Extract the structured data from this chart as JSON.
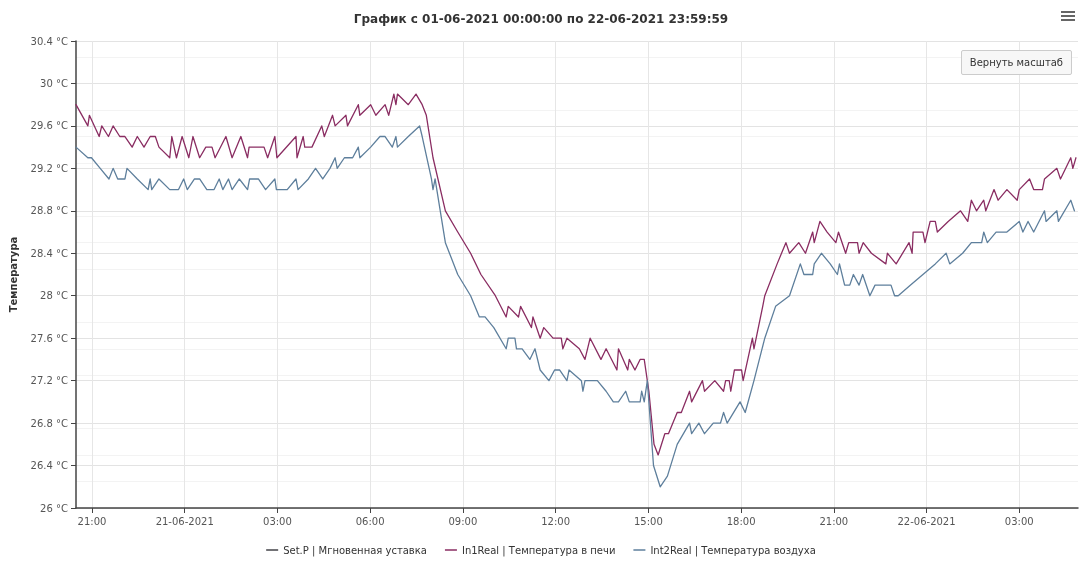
{
  "chart_data": {
    "type": "line",
    "title": "График с 01-06-2021 00:00:00 по 22-06-2021 23:59:59",
    "ylabel": "Температура",
    "annotations": [
      "Вернуть масштаб"
    ],
    "xlim": [
      "2021-06-20T20:29",
      "2021-06-22T04:54"
    ],
    "xticks": [
      {
        "value": "2021-06-20T21:00",
        "label": "21:00"
      },
      {
        "value": "2021-06-21T00:00",
        "label": "21-06-2021"
      },
      {
        "value": "2021-06-21T03:00",
        "label": "03:00"
      },
      {
        "value": "2021-06-21T06:00",
        "label": "06:00"
      },
      {
        "value": "2021-06-21T09:00",
        "label": "09:00"
      },
      {
        "value": "2021-06-21T12:00",
        "label": "12:00"
      },
      {
        "value": "2021-06-21T15:00",
        "label": "15:00"
      },
      {
        "value": "2021-06-21T18:00",
        "label": "18:00"
      },
      {
        "value": "2021-06-21T21:00",
        "label": "21:00"
      },
      {
        "value": "2021-06-22T00:00",
        "label": "22-06-2021"
      },
      {
        "value": "2021-06-22T03:00",
        "label": "03:00"
      }
    ],
    "ylim": [
      26,
      30.4
    ],
    "yticks": [
      {
        "value": 26,
        "label": "26 °C"
      },
      {
        "value": 26.4,
        "label": "26.4 °C"
      },
      {
        "value": 26.8,
        "label": "26.8 °C"
      },
      {
        "value": 27.2,
        "label": "27.2 °C"
      },
      {
        "value": 27.6,
        "label": "27.6 °C"
      },
      {
        "value": 28,
        "label": "28 °C"
      },
      {
        "value": 28.4,
        "label": "28.4 °C"
      },
      {
        "value": 28.8,
        "label": "28.8 °C"
      },
      {
        "value": 29.2,
        "label": "29.2 °C"
      },
      {
        "value": 29.6,
        "label": "29.6 °C"
      },
      {
        "value": 30,
        "label": "30 °C"
      },
      {
        "value": 30.4,
        "label": "30.4 °C"
      }
    ],
    "grid": true,
    "legend": "bottom",
    "marker": "none",
    "line_style": "solid",
    "series": [
      {
        "name": "Set.P | Мгновенная уставка",
        "color": "#434348"
      },
      {
        "name": "In1Real | Температура в печи",
        "color": "#8a2d62",
        "x": [
          "2021-06-20T20:29",
          "2021-06-20T20:52",
          "2021-06-20T20:55",
          "2021-06-20T21:14",
          "2021-06-20T21:19",
          "2021-06-20T21:32",
          "2021-06-20T21:41",
          "2021-06-20T21:54",
          "2021-06-20T22:04",
          "2021-06-20T22:18",
          "2021-06-20T22:28",
          "2021-06-20T22:41",
          "2021-06-20T22:53",
          "2021-06-20T23:03",
          "2021-06-20T23:10",
          "2021-06-20T23:31",
          "2021-06-20T23:35",
          "2021-06-20T23:44",
          "2021-06-20T23:55",
          "2021-06-21T00:08",
          "2021-06-21T00:16",
          "2021-06-21T00:29",
          "2021-06-21T00:41",
          "2021-06-21T00:53",
          "2021-06-21T00:59",
          "2021-06-21T01:20",
          "2021-06-21T01:32",
          "2021-06-21T01:49",
          "2021-06-21T02:02",
          "2021-06-21T02:05",
          "2021-06-21T02:34",
          "2021-06-21T02:41",
          "2021-06-21T02:55",
          "2021-06-21T02:59",
          "2021-06-21T03:36",
          "2021-06-21T03:38",
          "2021-06-21T03:50",
          "2021-06-21T03:53",
          "2021-06-21T04:07",
          "2021-06-21T04:26",
          "2021-06-21T04:31",
          "2021-06-21T04:47",
          "2021-06-21T04:52",
          "2021-06-21T05:13",
          "2021-06-21T05:16",
          "2021-06-21T05:37",
          "2021-06-21T05:40",
          "2021-06-21T06:01",
          "2021-06-21T06:11",
          "2021-06-21T06:29",
          "2021-06-21T06:36",
          "2021-06-21T06:46",
          "2021-06-21T06:50",
          "2021-06-21T06:53",
          "2021-06-21T07:14",
          "2021-06-21T07:29",
          "2021-06-21T07:41",
          "2021-06-21T07:49",
          "2021-06-21T08:02",
          "2021-06-21T08:26",
          "2021-06-21T08:50",
          "2021-06-21T09:15",
          "2021-06-21T09:35",
          "2021-06-21T10:03",
          "2021-06-21T10:24",
          "2021-06-21T10:28",
          "2021-06-21T10:48",
          "2021-06-21T10:52",
          "2021-06-21T11:13",
          "2021-06-21T11:16",
          "2021-06-21T11:30",
          "2021-06-21T11:37",
          "2021-06-21T11:55",
          "2021-06-21T12:11",
          "2021-06-21T12:14",
          "2021-06-21T12:22",
          "2021-06-21T12:46",
          "2021-06-21T12:57",
          "2021-06-21T13:07",
          "2021-06-21T13:28",
          "2021-06-21T13:38",
          "2021-06-21T13:59",
          "2021-06-21T14:02",
          "2021-06-21T14:20",
          "2021-06-21T14:23",
          "2021-06-21T14:34",
          "2021-06-21T14:44",
          "2021-06-21T14:52",
          "2021-06-21T15:01",
          "2021-06-21T15:11",
          "2021-06-21T15:19",
          "2021-06-21T15:32",
          "2021-06-21T15:39",
          "2021-06-21T15:56",
          "2021-06-21T16:04",
          "2021-06-21T16:20",
          "2021-06-21T16:24",
          "2021-06-21T16:45",
          "2021-06-21T16:49",
          "2021-06-21T17:09",
          "2021-06-21T17:26",
          "2021-06-21T17:30",
          "2021-06-21T17:37",
          "2021-06-21T17:40",
          "2021-06-21T17:47",
          "2021-06-21T18:01",
          "2021-06-21T18:04",
          "2021-06-21T18:22",
          "2021-06-21T18:25",
          "2021-06-21T18:42",
          "2021-06-21T18:46",
          "2021-06-21T19:10",
          "2021-06-21T19:27",
          "2021-06-21T19:34",
          "2021-06-21T19:52",
          "2021-06-21T20:05",
          "2021-06-21T20:19",
          "2021-06-21T20:22",
          "2021-06-21T20:33",
          "2021-06-21T20:47",
          "2021-06-21T21:04",
          "2021-06-21T21:09",
          "2021-06-21T21:23",
          "2021-06-21T21:29",
          "2021-06-21T21:46",
          "2021-06-21T21:49",
          "2021-06-21T21:57",
          "2021-06-21T22:13",
          "2021-06-21T22:41",
          "2021-06-21T22:44",
          "2021-06-21T23:01",
          "2021-06-21T23:26",
          "2021-06-21T23:32",
          "2021-06-21T23:34",
          "2021-06-21T23:53",
          "2021-06-21T23:57",
          "2021-06-22T00:07",
          "2021-06-22T00:17",
          "2021-06-22T00:21",
          "2021-06-22T00:42",
          "2021-06-22T01:06",
          "2021-06-22T01:20",
          "2021-06-22T01:27",
          "2021-06-22T01:37",
          "2021-06-22T01:51",
          "2021-06-22T01:55",
          "2021-06-22T02:11",
          "2021-06-22T02:19",
          "2021-06-22T02:36",
          "2021-06-22T02:56",
          "2021-06-22T03:00",
          "2021-06-22T03:20",
          "2021-06-22T03:28",
          "2021-06-22T03:45",
          "2021-06-22T03:49",
          "2021-06-22T04:13",
          "2021-06-22T04:20",
          "2021-06-22T04:40",
          "2021-06-22T04:44",
          "2021-06-22T04:50"
        ],
        "values": [
          29.8,
          29.6,
          29.7,
          29.5,
          29.6,
          29.5,
          29.6,
          29.5,
          29.5,
          29.4,
          29.5,
          29.4,
          29.5,
          29.5,
          29.4,
          29.3,
          29.5,
          29.3,
          29.5,
          29.3,
          29.5,
          29.3,
          29.4,
          29.4,
          29.3,
          29.5,
          29.3,
          29.5,
          29.3,
          29.4,
          29.4,
          29.3,
          29.5,
          29.3,
          29.5,
          29.3,
          29.5,
          29.4,
          29.4,
          29.6,
          29.5,
          29.7,
          29.6,
          29.7,
          29.6,
          29.8,
          29.7,
          29.8,
          29.7,
          29.8,
          29.7,
          29.9,
          29.8,
          29.9,
          29.8,
          29.9,
          29.8,
          29.7,
          29.3,
          28.8,
          28.6,
          28.4,
          28.2,
          28.0,
          27.8,
          27.9,
          27.8,
          27.9,
          27.7,
          27.8,
          27.6,
          27.7,
          27.6,
          27.6,
          27.5,
          27.6,
          27.5,
          27.4,
          27.6,
          27.4,
          27.5,
          27.3,
          27.5,
          27.3,
          27.4,
          27.3,
          27.4,
          27.4,
          27.1,
          26.6,
          26.5,
          26.7,
          26.7,
          26.9,
          26.9,
          27.1,
          27.0,
          27.2,
          27.1,
          27.2,
          27.1,
          27.2,
          27.2,
          27.1,
          27.3,
          27.3,
          27.2,
          27.6,
          27.5,
          27.9,
          28.0,
          28.3,
          28.5,
          28.4,
          28.5,
          28.4,
          28.6,
          28.5,
          28.7,
          28.6,
          28.5,
          28.6,
          28.4,
          28.5,
          28.5,
          28.4,
          28.5,
          28.4,
          28.3,
          28.4,
          28.3,
          28.5,
          28.4,
          28.6,
          28.6,
          28.5,
          28.7,
          28.7,
          28.6,
          28.7,
          28.8,
          28.7,
          28.9,
          28.8,
          28.9,
          28.8,
          29.0,
          28.9,
          29.0,
          28.9,
          29.0,
          29.1,
          29.0,
          29.0,
          29.1,
          29.2,
          29.1,
          29.3,
          29.2,
          29.3
        ]
      },
      {
        "name": "Int2Real | Температура воздуха",
        "color": "#5e7f9c",
        "x": [
          "2021-06-20T20:29",
          "2021-06-20T20:52",
          "2021-06-20T20:59",
          "2021-06-20T21:16",
          "2021-06-20T21:33",
          "2021-06-20T21:41",
          "2021-06-20T21:50",
          "2021-06-20T22:04",
          "2021-06-20T22:08",
          "2021-06-20T22:28",
          "2021-06-20T22:49",
          "2021-06-20T22:53",
          "2021-06-20T22:56",
          "2021-06-20T23:10",
          "2021-06-20T23:31",
          "2021-06-20T23:48",
          "2021-06-20T23:58",
          "2021-06-21T00:05",
          "2021-06-21T00:19",
          "2021-06-21T00:29",
          "2021-06-21T00:43",
          "2021-06-21T00:57",
          "2021-06-21T01:07",
          "2021-06-21T01:14",
          "2021-06-21T01:25",
          "2021-06-21T01:32",
          "2021-06-21T01:46",
          "2021-06-21T02:02",
          "2021-06-21T02:06",
          "2021-06-21T02:23",
          "2021-06-21T02:37",
          "2021-06-21T02:55",
          "2021-06-21T02:58",
          "2021-06-21T03:19",
          "2021-06-21T03:36",
          "2021-06-21T03:40",
          "2021-06-21T04:00",
          "2021-06-21T04:14",
          "2021-06-21T04:28",
          "2021-06-21T04:42",
          "2021-06-21T04:52",
          "2021-06-21T04:56",
          "2021-06-21T05:10",
          "2021-06-21T05:26",
          "2021-06-21T05:37",
          "2021-06-21T05:40",
          "2021-06-21T06:01",
          "2021-06-21T06:19",
          "2021-06-21T06:29",
          "2021-06-21T06:43",
          "2021-06-21T06:50",
          "2021-06-21T06:53",
          "2021-06-21T07:14",
          "2021-06-21T07:36",
          "2021-06-21T07:41",
          "2021-06-21T07:59",
          "2021-06-21T08:02",
          "2021-06-21T08:06",
          "2021-06-21T08:26",
          "2021-06-21T08:50",
          "2021-06-21T09:15",
          "2021-06-21T09:32",
          "2021-06-21T09:43",
          "2021-06-21T10:00",
          "2021-06-21T10:24",
          "2021-06-21T10:28",
          "2021-06-21T10:41",
          "2021-06-21T10:44",
          "2021-06-21T10:55",
          "2021-06-21T11:10",
          "2021-06-21T11:20",
          "2021-06-21T11:30",
          "2021-06-21T11:47",
          "2021-06-21T11:58",
          "2021-06-21T12:08",
          "2021-06-21T12:22",
          "2021-06-21T12:26",
          "2021-06-21T12:50",
          "2021-06-21T12:53",
          "2021-06-21T12:57",
          "2021-06-21T13:21",
          "2021-06-21T13:38",
          "2021-06-21T13:52",
          "2021-06-21T14:02",
          "2021-06-21T14:16",
          "2021-06-21T14:23",
          "2021-06-21T14:44",
          "2021-06-21T14:47",
          "2021-06-21T14:52",
          "2021-06-21T14:58",
          "2021-06-21T15:10",
          "2021-06-21T15:23",
          "2021-06-21T15:37",
          "2021-06-21T15:56",
          "2021-06-21T16:20",
          "2021-06-21T16:24",
          "2021-06-21T16:38",
          "2021-06-21T16:49",
          "2021-06-21T17:06",
          "2021-06-21T17:20",
          "2021-06-21T17:26",
          "2021-06-21T17:33",
          "2021-06-21T17:58",
          "2021-06-21T18:08",
          "2021-06-21T18:25",
          "2021-06-21T18:46",
          "2021-06-21T19:07",
          "2021-06-21T19:34",
          "2021-06-21T19:55",
          "2021-06-21T20:02",
          "2021-06-21T20:19",
          "2021-06-21T20:22",
          "2021-06-21T20:36",
          "2021-06-21T20:53",
          "2021-06-21T21:07",
          "2021-06-21T21:11",
          "2021-06-21T21:21",
          "2021-06-21T21:31",
          "2021-06-21T21:38",
          "2021-06-21T21:49",
          "2021-06-21T21:56",
          "2021-06-21T22:10",
          "2021-06-21T22:20",
          "2021-06-21T22:51",
          "2021-06-21T22:58",
          "2021-06-21T23:05",
          "2021-06-21T23:29",
          "2021-06-21T23:53",
          "2021-06-22T00:17",
          "2021-06-22T00:38",
          "2021-06-22T00:45",
          "2021-06-22T01:10",
          "2021-06-22T01:27",
          "2021-06-22T01:47",
          "2021-06-22T01:51",
          "2021-06-22T01:58",
          "2021-06-22T02:15",
          "2021-06-22T02:36",
          "2021-06-22T03:00",
          "2021-06-22T03:07",
          "2021-06-22T03:17",
          "2021-06-22T03:28",
          "2021-06-22T03:49",
          "2021-06-22T03:52",
          "2021-06-22T04:13",
          "2021-06-22T04:16",
          "2021-06-22T04:40",
          "2021-06-22T04:47"
        ],
        "values": [
          29.4,
          29.3,
          29.3,
          29.2,
          29.1,
          29.2,
          29.1,
          29.1,
          29.2,
          29.1,
          29.0,
          29.1,
          29.0,
          29.1,
          29.0,
          29.0,
          29.1,
          29.0,
          29.1,
          29.1,
          29.0,
          29.0,
          29.1,
          29.0,
          29.1,
          29.0,
          29.1,
          29.0,
          29.1,
          29.1,
          29.0,
          29.1,
          29.0,
          29.0,
          29.1,
          29.0,
          29.1,
          29.2,
          29.1,
          29.2,
          29.3,
          29.2,
          29.3,
          29.3,
          29.4,
          29.3,
          29.4,
          29.5,
          29.5,
          29.4,
          29.5,
          29.4,
          29.5,
          29.6,
          29.5,
          29.1,
          29.0,
          29.1,
          28.5,
          28.2,
          28.0,
          27.8,
          27.8,
          27.7,
          27.5,
          27.6,
          27.6,
          27.5,
          27.5,
          27.4,
          27.5,
          27.3,
          27.2,
          27.3,
          27.3,
          27.2,
          27.3,
          27.2,
          27.1,
          27.2,
          27.2,
          27.1,
          27.0,
          27.0,
          27.1,
          27.0,
          27.0,
          27.1,
          27.0,
          27.2,
          26.4,
          26.2,
          26.3,
          26.6,
          26.8,
          26.7,
          26.8,
          26.7,
          26.8,
          26.8,
          26.9,
          26.8,
          27.0,
          26.9,
          27.2,
          27.6,
          27.9,
          28.0,
          28.3,
          28.2,
          28.2,
          28.3,
          28.4,
          28.3,
          28.2,
          28.3,
          28.1,
          28.1,
          28.2,
          28.1,
          28.2,
          28.0,
          28.1,
          28.1,
          28.0,
          28.0,
          28.1,
          28.2,
          28.3,
          28.4,
          28.3,
          28.4,
          28.5,
          28.5,
          28.6,
          28.5,
          28.6,
          28.6,
          28.7,
          28.6,
          28.7,
          28.6,
          28.8,
          28.7,
          28.8,
          28.7,
          28.9,
          28.8
        ]
      }
    ]
  }
}
